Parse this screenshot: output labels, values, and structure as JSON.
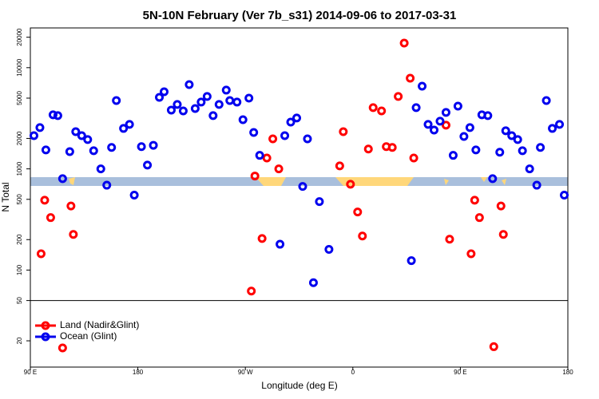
{
  "chart_data": {
    "type": "scatter",
    "title": "5N-10N February (Ver 7b_s31)   2014-09-06 to 2017-03-31",
    "x_label": "Longitude (deg E)",
    "y_label": "N Total",
    "log_y": true,
    "legend": "bottom-left",
    "hline": 50,
    "xlim": [
      90,
      540
    ],
    "ylim": [
      11,
      24700
    ],
    "xticks": [
      {
        "value": 90,
        "label": "90 E"
      },
      {
        "value": 180,
        "label": "180"
      },
      {
        "value": 270,
        "label": "90 W"
      },
      {
        "value": 360,
        "label": "0"
      },
      {
        "value": 450,
        "label": "90 E"
      },
      {
        "value": 540,
        "label": "180"
      }
    ],
    "yticks": [
      20,
      50,
      100,
      200,
      500,
      1000,
      2000,
      5000,
      10000,
      20000
    ],
    "series": [
      {
        "name": "Land (Nadir&Glint)",
        "color": "#ff0000",
        "x": [
          99,
          102,
          107,
          124,
          126,
          275,
          278,
          284,
          288,
          293,
          298,
          349,
          352,
          358,
          364,
          368,
          373,
          377,
          384,
          388,
          393,
          398,
          403,
          408,
          411,
          438,
          441,
          459,
          462,
          466,
          484,
          486,
          478,
          117
        ],
        "values": [
          145,
          490,
          330,
          430,
          225,
          62,
          850,
          205,
          1280,
          1980,
          1000,
          1070,
          2330,
          705,
          375,
          217,
          1570,
          4030,
          3740,
          1660,
          1630,
          5190,
          17500,
          7870,
          1280,
          2700,
          202,
          145,
          490,
          330,
          430,
          225,
          17.5,
          17
        ]
      },
      {
        "name": "Ocean (Glint)",
        "color": "#0000ee",
        "x": [
          93,
          98,
          103,
          109,
          113,
          117,
          123,
          128,
          133,
          138,
          143,
          149,
          154,
          158,
          162,
          168,
          173,
          177,
          183,
          188,
          193,
          198,
          202,
          208,
          213,
          218,
          223,
          228,
          233,
          238,
          243,
          248,
          254,
          257,
          263,
          268,
          273,
          277,
          282,
          299,
          303,
          308,
          313,
          318,
          322,
          327,
          332,
          340,
          409,
          413,
          418,
          423,
          428,
          433,
          438,
          444,
          448,
          453,
          458,
          463,
          468,
          473,
          477,
          483,
          488,
          493,
          498,
          502,
          508,
          514,
          517,
          522,
          527,
          533,
          537
        ],
        "values": [
          2130,
          2560,
          1540,
          3420,
          3360,
          800,
          1480,
          2330,
          2130,
          1950,
          1510,
          1000,
          690,
          1630,
          4730,
          2510,
          2750,
          550,
          1660,
          1090,
          1710,
          5090,
          5780,
          3810,
          4330,
          3740,
          6810,
          3950,
          4570,
          5190,
          3360,
          4330,
          6000,
          4730,
          4570,
          3060,
          5000,
          2290,
          1360,
          180,
          2130,
          2900,
          3180,
          670,
          1980,
          75,
          475,
          160,
          124,
          4030,
          6560,
          2750,
          2420,
          2960,
          3610,
          1360,
          4170,
          2090,
          2560,
          1540,
          3420,
          3360,
          800,
          1460,
          2380,
          2130,
          1950,
          1510,
          1000,
          690,
          1630,
          4730,
          2510,
          2750,
          550
        ]
      }
    ]
  }
}
